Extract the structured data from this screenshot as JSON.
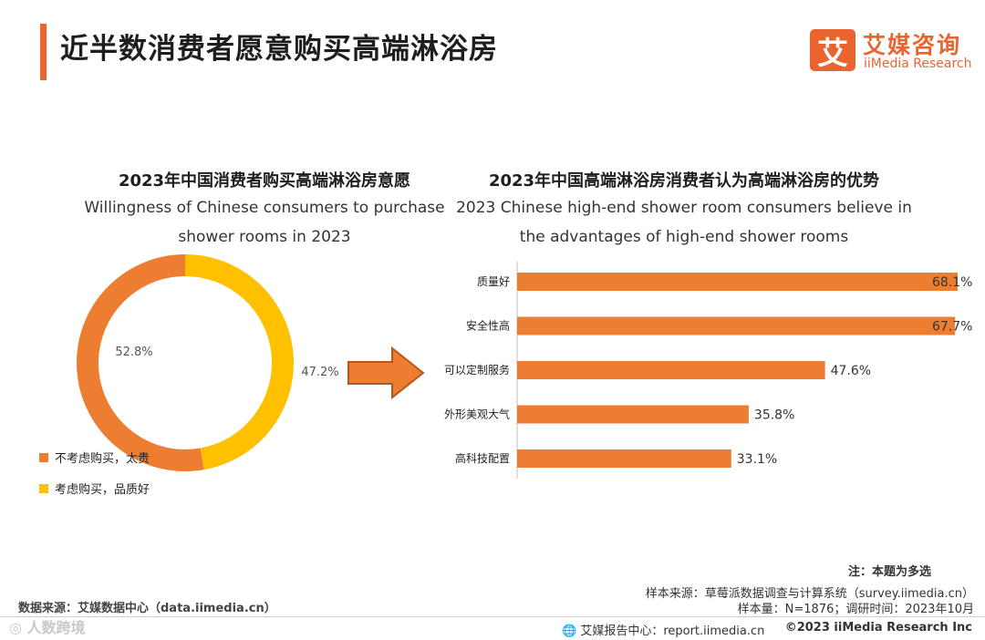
{
  "header": {
    "title": "近半数消费者愿意购买高端淋浴房",
    "logo_mark": "艾",
    "logo_cn": "艾媒咨询",
    "logo_en": "iiMedia Research"
  },
  "colors": {
    "accent": "#e9642f",
    "bar": "#ed7d31",
    "yellow": "#ffc000"
  },
  "chart_data": [
    {
      "type": "pie",
      "title": "2023年中国消费者购买高端淋浴房意愿",
      "subtitle_line1": "Willingness of Chinese consumers to purchase",
      "subtitle_line2": "shower rooms in 2023",
      "slices": [
        {
          "label": "不考虑购买，太贵",
          "value": 52.8,
          "display": "52.8%",
          "color": "#ed7d31"
        },
        {
          "label": "考虑购买，品质好",
          "value": 47.2,
          "display": "47.2%",
          "color": "#ffc000"
        }
      ]
    },
    {
      "type": "bar",
      "orientation": "horizontal",
      "title": "2023年中国高端淋浴房消费者认为高端淋浴房的优势",
      "subtitle_line1": "2023 Chinese high-end shower room consumers believe in",
      "subtitle_line2": "the advantages of high-end shower rooms",
      "categories": [
        "质量好",
        "安全性高",
        "可以定制服务",
        "外形美观大气",
        "高科技配置"
      ],
      "values": [
        68.1,
        67.7,
        47.6,
        35.8,
        33.1
      ],
      "labels": [
        "68.1%",
        "67.7%",
        "47.6%",
        "35.8%",
        "33.1%"
      ],
      "xlim": [
        0,
        70
      ]
    }
  ],
  "notes": {
    "multi_select": "注：本题为多选",
    "sample_source": "样本来源：草莓派数据调查与计算系统（survey.iimedia.cn）",
    "sample_size": "样本量：N=1876；调研时间：2023年10月",
    "data_source": "数据来源：艾媒数据中心（data.iimedia.cn）"
  },
  "footer": {
    "report_center": "艾媒报告中心：report.iimedia.cn",
    "copyright": "©2023  iiMedia Research  Inc",
    "watermark": "人数跨境"
  }
}
